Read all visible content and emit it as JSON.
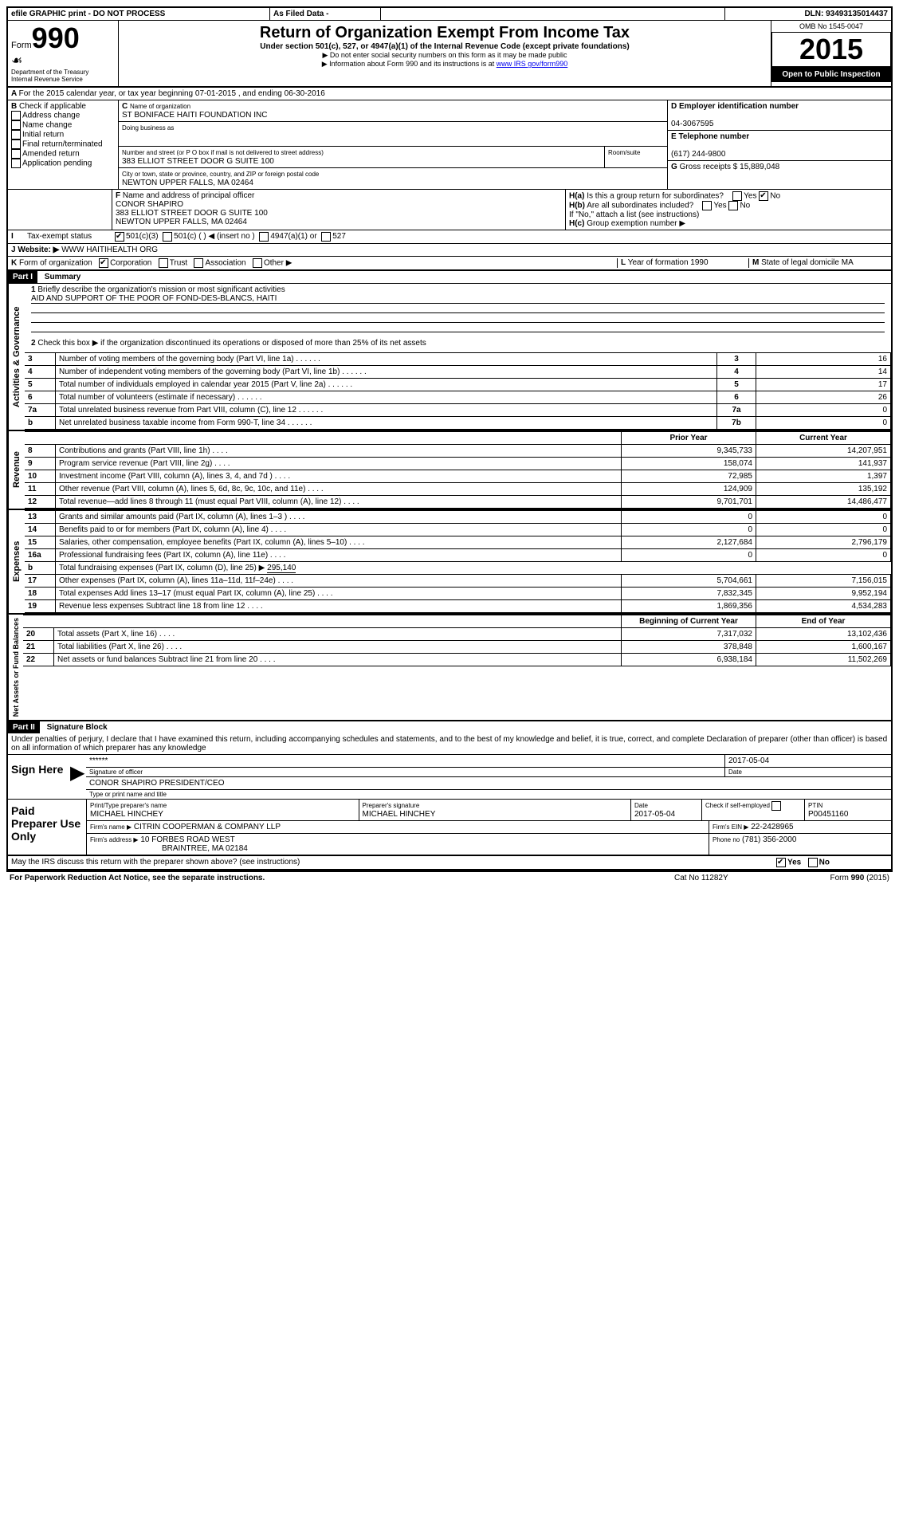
{
  "header": {
    "efile": "efile GRAPHIC print - DO NOT PROCESS",
    "as_filed": "As Filed Data -",
    "dln_label": "DLN:",
    "dln": "93493135014437",
    "form_label": "Form",
    "form_number": "990",
    "dept": "Department of the Treasury",
    "irs": "Internal Revenue Service",
    "title": "Return of Organization Exempt From Income Tax",
    "subtitle1": "Under section 501(c), 527, or 4947(a)(1) of the Internal Revenue Code (except private foundations)",
    "subtitle2": "▶ Do not enter social security numbers on this form as it may be made public",
    "subtitle3": "▶ Information about Form 990 and its instructions is at ",
    "irs_url": "www IRS gov/form990",
    "omb": "OMB No 1545-0047",
    "year": "2015",
    "inspection": "Open to Public Inspection"
  },
  "a": {
    "line": "For the 2015 calendar year, or tax year beginning 07-01-2015   , and ending 06-30-2016"
  },
  "b": {
    "label": "B",
    "check": "Check if applicable",
    "opts": [
      "Address change",
      "Name change",
      "Initial return",
      "Final return/terminated",
      "Amended return",
      "Application pending"
    ]
  },
  "c": {
    "label": "C",
    "name_label": "Name of organization",
    "name": "ST BONIFACE HAITI FOUNDATION INC",
    "dba_label": "Doing business as",
    "dba": "",
    "street_label": "Number and street (or P O  box if mail is not delivered to street address)",
    "street": "383 ELLIOT STREET DOOR G SUITE 100",
    "room_label": "Room/suite",
    "city_label": "City or town, state or province, country, and ZIP or foreign postal code",
    "city": "NEWTON UPPER FALLS, MA  02464"
  },
  "d": {
    "label": "D Employer identification number",
    "value": "04-3067595"
  },
  "e": {
    "label": "E Telephone number",
    "value": "(617) 244-9800"
  },
  "g": {
    "label": "G",
    "text": "Gross receipts $",
    "value": "15,889,048"
  },
  "f": {
    "label": "F",
    "text": "Name and address of principal officer",
    "name": "CONOR SHAPIRO",
    "street": "383 ELLIOT STREET DOOR G SUITE 100",
    "city": "NEWTON UPPER FALLS, MA  02464"
  },
  "h": {
    "a_label": "H(a)",
    "a_text": "Is this a group return for subordinates?",
    "a_answer": "No",
    "b_label": "H(b)",
    "b_text": "Are all subordinates included?",
    "b_note": "If \"No,\" attach a list  (see instructions)",
    "c_label": "H(c)",
    "c_text": "Group exemption number ▶"
  },
  "i": {
    "label": "I",
    "text": "Tax-exempt status",
    "opts": [
      "501(c)(3)",
      "501(c) (  ) ◀ (insert no )",
      "4947(a)(1) or",
      "527"
    ]
  },
  "j": {
    "label": "J",
    "text": "Website: ▶",
    "value": "WWW HAITIHEALTH ORG"
  },
  "k": {
    "label": "K",
    "text": "Form of organization",
    "opts": [
      "Corporation",
      "Trust",
      "Association",
      "Other ▶"
    ]
  },
  "l": {
    "label": "L",
    "text": "Year of formation",
    "value": "1990"
  },
  "m": {
    "label": "M",
    "text": "State of legal domicile",
    "value": "MA"
  },
  "part1": {
    "title": "Part I",
    "subtitle": "Summary",
    "line1": "Briefly describe the organization's mission or most significant activities",
    "mission": "AID AND SUPPORT OF THE POOR OF FOND-DES-BLANCS, HAITI",
    "line2": "Check this box ▶      if the organization discontinued its operations or disposed of more than 25% of its net assets",
    "sections": {
      "governance": "Activities & Governance",
      "revenue": "Revenue",
      "expenses": "Expenses",
      "netassets": "Net Assets or Fund Balances"
    },
    "gov_rows": [
      {
        "num": "3",
        "label": "Number of voting members of the governing body (Part VI, line 1a)",
        "col": "3",
        "val": "16"
      },
      {
        "num": "4",
        "label": "Number of independent voting members of the governing body (Part VI, line 1b)",
        "col": "4",
        "val": "14"
      },
      {
        "num": "5",
        "label": "Total number of individuals employed in calendar year 2015 (Part V, line 2a)",
        "col": "5",
        "val": "17"
      },
      {
        "num": "6",
        "label": "Total number of volunteers (estimate if necessary)",
        "col": "6",
        "val": "26"
      },
      {
        "num": "7a",
        "label": "Total unrelated business revenue from Part VIII, column (C), line 12",
        "col": "7a",
        "val": "0"
      },
      {
        "num": "b",
        "label": "Net unrelated business taxable income from Form 990-T, line 34",
        "col": "7b",
        "val": "0"
      }
    ],
    "col_headers": {
      "prior": "Prior Year",
      "current": "Current Year"
    },
    "rev_rows": [
      {
        "num": "8",
        "label": "Contributions and grants (Part VIII, line 1h)",
        "prior": "9,345,733",
        "current": "14,207,951"
      },
      {
        "num": "9",
        "label": "Program service revenue (Part VIII, line 2g)",
        "prior": "158,074",
        "current": "141,937"
      },
      {
        "num": "10",
        "label": "Investment income (Part VIII, column (A), lines 3, 4, and 7d )",
        "prior": "72,985",
        "current": "1,397"
      },
      {
        "num": "11",
        "label": "Other revenue (Part VIII, column (A), lines 5, 6d, 8c, 9c, 10c, and 11e)",
        "prior": "124,909",
        "current": "135,192"
      },
      {
        "num": "12",
        "label": "Total revenue—add lines 8 through 11 (must equal Part VIII, column (A), line 12)",
        "prior": "9,701,701",
        "current": "14,486,477"
      }
    ],
    "exp_rows": [
      {
        "num": "13",
        "label": "Grants and similar amounts paid (Part IX, column (A), lines 1–3 )",
        "prior": "0",
        "current": "0"
      },
      {
        "num": "14",
        "label": "Benefits paid to or for members (Part IX, column (A), line 4)",
        "prior": "0",
        "current": "0"
      },
      {
        "num": "15",
        "label": "Salaries, other compensation, employee benefits (Part IX, column (A), lines 5–10)",
        "prior": "2,127,684",
        "current": "2,796,179"
      },
      {
        "num": "16a",
        "label": "Professional fundraising fees (Part IX, column (A), line 11e)",
        "prior": "0",
        "current": "0"
      }
    ],
    "line16b": {
      "num": "b",
      "label": "Total fundraising expenses (Part IX, column (D), line 25) ▶",
      "val": "295,140"
    },
    "exp_rows2": [
      {
        "num": "17",
        "label": "Other expenses (Part IX, column (A), lines 11a–11d, 11f–24e)",
        "prior": "5,704,661",
        "current": "7,156,015"
      },
      {
        "num": "18",
        "label": "Total expenses  Add lines 13–17 (must equal Part IX, column (A), line 25)",
        "prior": "7,832,345",
        "current": "9,952,194"
      },
      {
        "num": "19",
        "label": "Revenue less expenses  Subtract line 18 from line 12",
        "prior": "1,869,356",
        "current": "4,534,283"
      }
    ],
    "net_headers": {
      "begin": "Beginning of Current Year",
      "end": "End of Year"
    },
    "net_rows": [
      {
        "num": "20",
        "label": "Total assets (Part X, line 16)",
        "begin": "7,317,032",
        "end": "13,102,436"
      },
      {
        "num": "21",
        "label": "Total liabilities (Part X, line 26)",
        "begin": "378,848",
        "end": "1,600,167"
      },
      {
        "num": "22",
        "label": "Net assets or fund balances  Subtract line 21 from line 20",
        "begin": "6,938,184",
        "end": "11,502,269"
      }
    ]
  },
  "part2": {
    "title": "Part II",
    "subtitle": "Signature Block",
    "perjury": "Under penalties of perjury, I declare that I have examined this return, including accompanying schedules and statements, and to the best of my knowledge and belief, it is true, correct, and complete  Declaration of preparer (other than officer) is based on all information of which preparer has any knowledge",
    "sign_here": "Sign Here",
    "sig_stars": "******",
    "sig_officer": "Signature of officer",
    "sig_date": "2017-05-04",
    "date_label": "Date",
    "sig_name": "CONOR SHAPIRO PRESIDENT/CEO",
    "sig_name_label": "Type or print name and title",
    "paid": "Paid Preparer Use Only",
    "prep_name_label": "Print/Type preparer's name",
    "prep_name": "MICHAEL HINCHEY",
    "prep_sig_label": "Preparer's signature",
    "prep_sig": "MICHAEL HINCHEY",
    "prep_date_label": "Date",
    "prep_date": "2017-05-04",
    "self_emp": "Check       if self-employed",
    "ptin_label": "PTIN",
    "ptin": "P00451160",
    "firm_name_label": "Firm's name    ▶",
    "firm_name": "CITRIN COOPERMAN & COMPANY LLP",
    "firm_ein_label": "Firm's EIN ▶",
    "firm_ein": "22-2428965",
    "firm_addr_label": "Firm's address ▶",
    "firm_addr1": "10 FORBES ROAD WEST",
    "firm_addr2": "BRAINTREE, MA  02184",
    "phone_label": "Phone no",
    "phone": "(781) 356-2000",
    "discuss": "May the IRS discuss this return with the preparer shown above? (see instructions)",
    "paperwork": "For Paperwork Reduction Act Notice, see the separate instructions.",
    "cat": "Cat No 11282Y",
    "form_footer": "Form",
    "form_footer_num": "990",
    "form_footer_year": "(2015)"
  }
}
